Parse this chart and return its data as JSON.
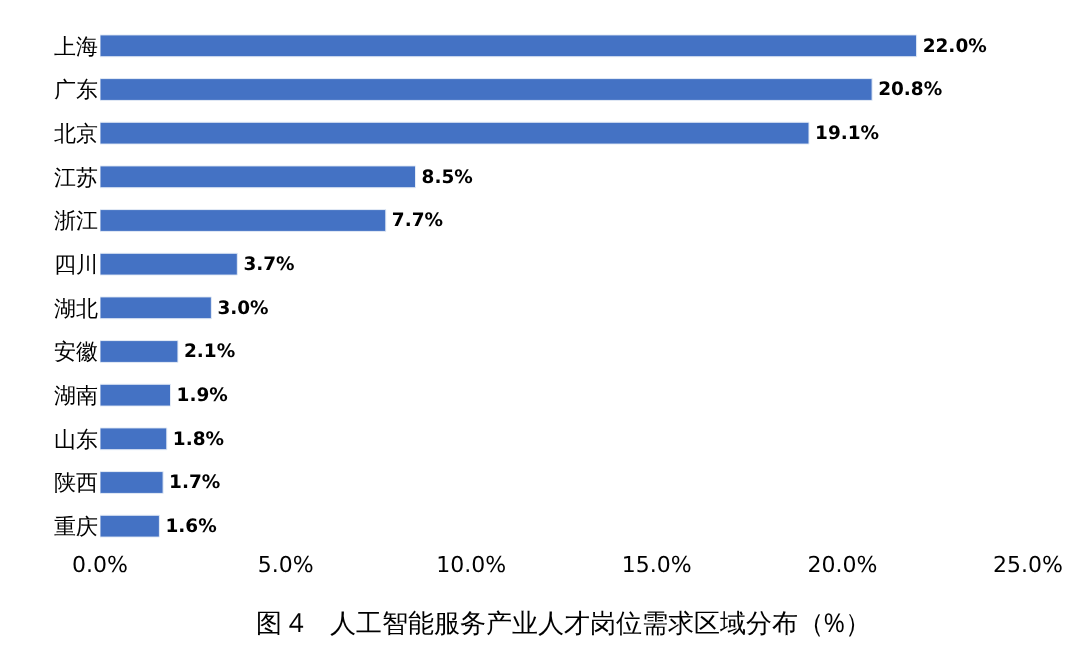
{
  "chart_data": {
    "type": "bar",
    "orientation": "horizontal",
    "title": "图 4　人工智能服务产业人才岗位需求区域分布（%）",
    "categories": [
      "上海",
      "广东",
      "北京",
      "江苏",
      "浙江",
      "四川",
      "湖北",
      "安徽",
      "湖南",
      "山东",
      "陕西",
      "重庆"
    ],
    "values": [
      22.0,
      20.8,
      19.1,
      8.5,
      7.7,
      3.7,
      3.0,
      2.1,
      1.9,
      1.8,
      1.7,
      1.6
    ],
    "value_labels": [
      "22.0%",
      "20.8%",
      "19.1%",
      "8.5%",
      "7.7%",
      "3.7%",
      "3.0%",
      "2.1%",
      "1.9%",
      "1.8%",
      "1.7%",
      "1.6%"
    ],
    "color": "#4472c4",
    "xlim": [
      0,
      25
    ],
    "xticks": [
      {
        "value": 0,
        "label": "0.0%"
      },
      {
        "value": 5,
        "label": "5.0%"
      },
      {
        "value": 10,
        "label": "10.0%"
      },
      {
        "value": 15,
        "label": "15.0%"
      },
      {
        "value": 20,
        "label": "20.0%"
      },
      {
        "value": 25,
        "label": "25.0%"
      }
    ],
    "tick_labels": "xy"
  }
}
